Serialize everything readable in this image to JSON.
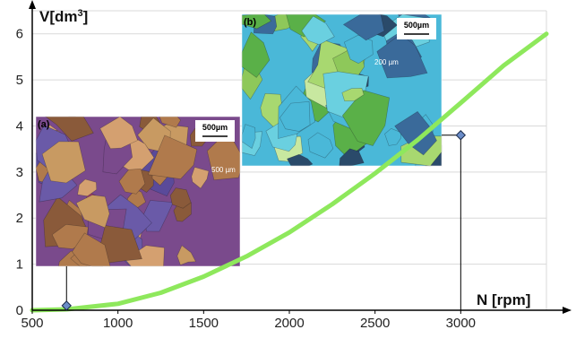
{
  "chart_data": {
    "type": "line",
    "title": "",
    "xlabel": "N [rpm]",
    "ylabel_prefix": "V[dm",
    "ylabel_sup": "3",
    "ylabel_suffix": "]",
    "xlim": [
      500,
      3500
    ],
    "ylim": [
      0,
      6.5
    ],
    "x_ticks": [
      500,
      1000,
      1500,
      2000,
      2500,
      3000
    ],
    "y_ticks": [
      0,
      1,
      2,
      3,
      4,
      5,
      6
    ],
    "grid": "horizontal",
    "series": [
      {
        "color": "#8ee85c",
        "x": [
          500,
          700,
          1000,
          1250,
          1500,
          1750,
          2000,
          2250,
          2500,
          2750,
          3000,
          3250,
          3500
        ],
        "y": [
          0.0,
          0.02,
          0.14,
          0.38,
          0.73,
          1.17,
          1.69,
          2.3,
          2.97,
          3.7,
          4.5,
          5.31,
          6.0
        ]
      }
    ],
    "markers": [
      {
        "panel": "(a)",
        "x": 700,
        "y": 0.1
      },
      {
        "panel": "(b)",
        "x": 3000,
        "y": 3.8
      }
    ],
    "insets": [
      {
        "tag": "(a)",
        "scale_bar": "500µm",
        "inner_label": "500 µm",
        "palette": [
          "#7a4a8c",
          "#b07a4c",
          "#c89a62",
          "#5a4a9a",
          "#9a3a6a",
          "#d4a070",
          "#6a5aa8",
          "#8a5a3a"
        ]
      },
      {
        "tag": "(b)",
        "scale_bar": "500µm",
        "inner_label": "200 µm",
        "palette": [
          "#4ab8d8",
          "#8ec85a",
          "#2a4a6a",
          "#6ad0e0",
          "#a8d870",
          "#3a6a9a",
          "#5ab048",
          "#c8e8a0"
        ]
      }
    ]
  }
}
